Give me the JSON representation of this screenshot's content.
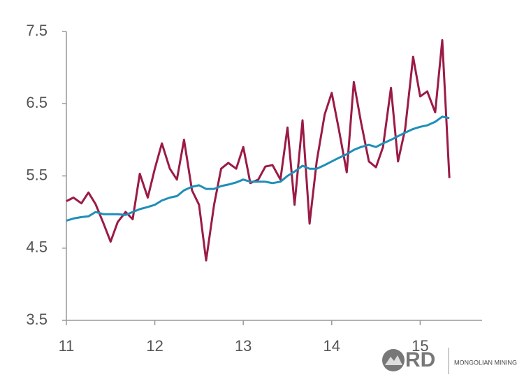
{
  "chart_data": {
    "type": "line",
    "x": [
      11.0,
      11.08,
      11.17,
      11.25,
      11.33,
      11.42,
      11.5,
      11.58,
      11.67,
      11.75,
      11.83,
      11.92,
      12.0,
      12.08,
      12.17,
      12.25,
      12.33,
      12.42,
      12.5,
      12.58,
      12.67,
      12.75,
      12.83,
      12.92,
      13.0,
      13.08,
      13.17,
      13.25,
      13.33,
      13.42,
      13.5,
      13.58,
      13.67,
      13.75,
      13.83,
      13.92,
      14.0,
      14.08,
      14.17,
      14.25,
      14.33,
      14.42,
      14.5,
      14.58,
      14.67,
      14.75,
      14.83,
      14.92,
      15.0,
      15.08,
      15.17,
      15.25,
      15.33
    ],
    "series": [
      {
        "color": "#9b1b45",
        "values": [
          5.15,
          5.2,
          5.12,
          5.27,
          5.11,
          4.84,
          4.59,
          4.86,
          5.0,
          4.9,
          5.53,
          5.2,
          5.6,
          5.95,
          5.6,
          5.45,
          6.0,
          5.3,
          5.1,
          4.33,
          5.1,
          5.6,
          5.68,
          5.6,
          5.9,
          5.4,
          5.45,
          5.63,
          5.65,
          5.45,
          6.17,
          5.1,
          6.27,
          4.84,
          5.7,
          6.35,
          6.65,
          6.15,
          5.55,
          6.8,
          6.25,
          5.7,
          5.62,
          5.9,
          6.72,
          5.7,
          6.15,
          7.15,
          6.6,
          6.67,
          6.38,
          7.38,
          5.47
        ]
      },
      {
        "color": "#1f8fb8",
        "values": [
          4.88,
          4.91,
          4.93,
          4.94,
          5.0,
          4.97,
          4.97,
          4.97,
          4.96,
          5.0,
          5.04,
          5.07,
          5.1,
          5.16,
          5.2,
          5.22,
          5.3,
          5.35,
          5.37,
          5.32,
          5.32,
          5.36,
          5.38,
          5.41,
          5.45,
          5.42,
          5.42,
          5.42,
          5.4,
          5.42,
          5.5,
          5.56,
          5.64,
          5.6,
          5.6,
          5.65,
          5.7,
          5.75,
          5.8,
          5.86,
          5.9,
          5.93,
          5.9,
          5.95,
          6.0,
          6.05,
          6.1,
          6.15,
          6.18,
          6.2,
          6.25,
          6.32,
          6.3
        ]
      }
    ],
    "xlim": [
      11,
      15.7
    ],
    "xticks": [
      11,
      12,
      13,
      14,
      15
    ],
    "ylim": [
      3.5,
      7.5
    ],
    "yticks": [
      3.5,
      4.5,
      5.5,
      6.5,
      7.5
    ]
  },
  "logo": {
    "mark": "RD",
    "text": "MONGOLIAN MINING"
  }
}
